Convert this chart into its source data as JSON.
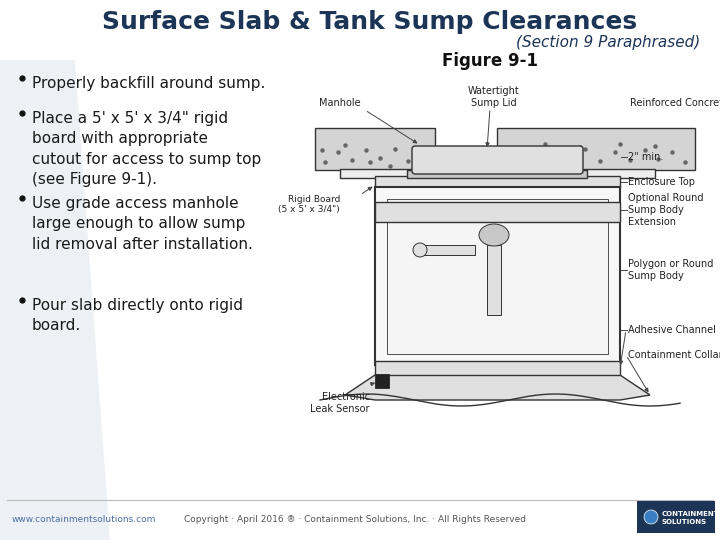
{
  "title": "Surface Slab & Tank Sump Clearances",
  "subtitle": "(Section 9 Paraphrased)",
  "figure_label": "Figure 9-1",
  "bullets": [
    "Properly backfill around sump.",
    "Place a 5' x 5' x 3/4\" rigid\nboard with appropriate\ncutout for access to sump top\n(see Figure 9-1).",
    "Use grade access manhole\nlarge enough to allow sump\nlid removal after installation.",
    "Pour slab directly onto rigid\nboard."
  ],
  "title_color": "#1c3557",
  "subtitle_color": "#1c3557",
  "bullet_color": "#1a1a1a",
  "background_color": "#ffffff",
  "footer_left": "www.containmentsolutions.com",
  "footer_center": "Copyright · April 2016 ® · Containment Solutions, Inc. · All Rights Reserved",
  "footer_color": "#4a6fa5",
  "left_bg_color": "#e2e8f0",
  "title_fontsize": 18,
  "subtitle_fontsize": 11,
  "bullet_fontsize": 11,
  "figure_label_fontsize": 12
}
